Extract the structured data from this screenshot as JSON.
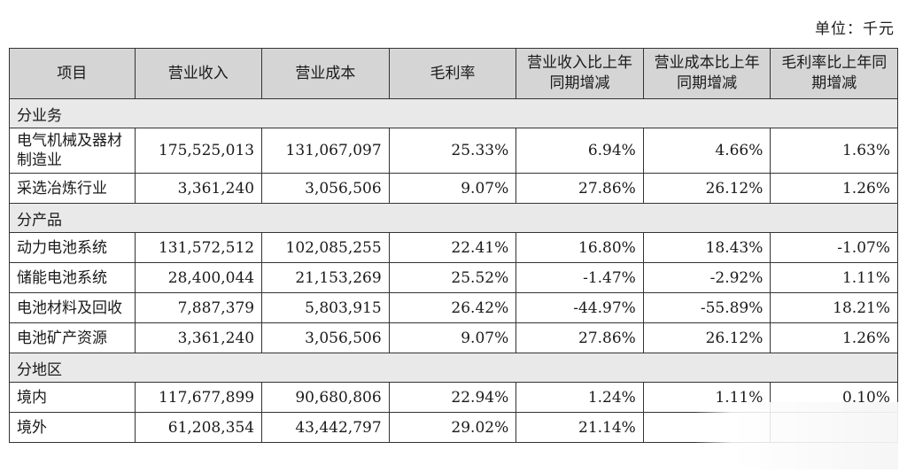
{
  "unit_label": "单位：千元",
  "headers": {
    "item": "项目",
    "revenue": "营业收入",
    "cost": "营业成本",
    "gross_margin": "毛利率",
    "revenue_yoy": "营业收入比上年同期增减",
    "cost_yoy": "营业成本比上年同期增减",
    "gross_margin_yoy": "毛利率比上年同期增减"
  },
  "sections": [
    {
      "title": "分业务",
      "rows": [
        {
          "item": "电气机械及器材制造业",
          "revenue": "175,525,013",
          "cost": "131,067,097",
          "gross_margin": "25.33%",
          "revenue_yoy": "6.94%",
          "cost_yoy": "4.66%",
          "gross_margin_yoy": "1.63%"
        },
        {
          "item": "采选冶炼行业",
          "revenue": "3,361,240",
          "cost": "3,056,506",
          "gross_margin": "9.07%",
          "revenue_yoy": "27.86%",
          "cost_yoy": "26.12%",
          "gross_margin_yoy": "1.26%"
        }
      ]
    },
    {
      "title": "分产品",
      "rows": [
        {
          "item": "动力电池系统",
          "revenue": "131,572,512",
          "cost": "102,085,255",
          "gross_margin": "22.41%",
          "revenue_yoy": "16.80%",
          "cost_yoy": "18.43%",
          "gross_margin_yoy": "-1.07%"
        },
        {
          "item": "储能电池系统",
          "revenue": "28,400,044",
          "cost": "21,153,269",
          "gross_margin": "25.52%",
          "revenue_yoy": "-1.47%",
          "cost_yoy": "-2.92%",
          "gross_margin_yoy": "1.11%"
        },
        {
          "item": "电池材料及回收",
          "revenue": "7,887,379",
          "cost": "5,803,915",
          "gross_margin": "26.42%",
          "revenue_yoy": "-44.97%",
          "cost_yoy": "-55.89%",
          "gross_margin_yoy": "18.21%"
        },
        {
          "item": "电池矿产资源",
          "revenue": "3,361,240",
          "cost": "3,056,506",
          "gross_margin": "9.07%",
          "revenue_yoy": "27.86%",
          "cost_yoy": "26.12%",
          "gross_margin_yoy": "1.26%"
        }
      ]
    },
    {
      "title": "分地区",
      "rows": [
        {
          "item": "境内",
          "revenue": "117,677,899",
          "cost": "90,680,806",
          "gross_margin": "22.94%",
          "revenue_yoy": "1.24%",
          "cost_yoy": "1.11%",
          "gross_margin_yoy": "0.10%"
        },
        {
          "item": "境外",
          "revenue": "61,208,354",
          "cost": "43,442,797",
          "gross_margin": "29.02%",
          "revenue_yoy": "21.14%",
          "cost_yoy": "",
          "gross_margin_yoy": ""
        }
      ]
    }
  ]
}
